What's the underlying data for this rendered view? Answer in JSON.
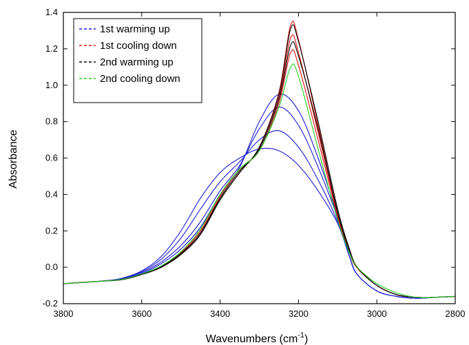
{
  "chart_data": {
    "type": "line",
    "title": "",
    "xlabel": "Wavenumbers (cm",
    "xlabel_superscript": "-1",
    "xlabel_suffix": ")",
    "ylabel": "Absorbance",
    "xlim": [
      3800,
      2800
    ],
    "ylim": [
      -0.2,
      1.4
    ],
    "x_reversed": true,
    "x_ticks": [
      3800,
      3600,
      3400,
      3200,
      3000,
      2800
    ],
    "x_tick_labels": [
      "3800",
      "3600",
      "3400",
      "3200",
      "3000",
      "2800"
    ],
    "y_ticks": [
      -0.2,
      0.0,
      0.2,
      0.4,
      0.6,
      0.8,
      1.0,
      1.2,
      1.4
    ],
    "y_tick_labels": [
      "-0.2",
      "0.0",
      "0.2",
      "0.4",
      "0.6",
      "0.8",
      "1.0",
      "1.2",
      "1.4"
    ],
    "grid": false,
    "legend_position": "top-left",
    "series": [
      {
        "name": "1st warming up",
        "color": "#1a1ad6",
        "spectra": [
          {
            "x": [
              3800,
              3700,
              3650,
              3600,
              3550,
              3500,
              3450,
              3400,
              3350,
              3300,
              3250,
              3200,
              3150,
              3100,
              3070,
              3050,
              3000,
              2950,
              2900,
              2850,
              2800
            ],
            "y": [
              -0.09,
              -0.075,
              -0.06,
              -0.02,
              0.06,
              0.2,
              0.38,
              0.52,
              0.6,
              0.65,
              0.64,
              0.56,
              0.42,
              0.24,
              0.06,
              -0.04,
              -0.13,
              -0.16,
              -0.17,
              -0.165,
              -0.16
            ]
          },
          {
            "x": [
              3800,
              3700,
              3650,
              3600,
              3550,
              3500,
              3450,
              3400,
              3350,
              3300,
              3250,
              3200,
              3150,
              3100,
              3070,
              3050,
              3000,
              2950,
              2900,
              2850,
              2800
            ],
            "y": [
              -0.09,
              -0.075,
              -0.062,
              -0.025,
              0.045,
              0.16,
              0.32,
              0.47,
              0.58,
              0.7,
              0.75,
              0.66,
              0.48,
              0.25,
              0.06,
              -0.04,
              -0.13,
              -0.16,
              -0.17,
              -0.165,
              -0.16
            ]
          },
          {
            "x": [
              3800,
              3700,
              3650,
              3600,
              3550,
              3500,
              3450,
              3400,
              3350,
              3300,
              3250,
              3200,
              3150,
              3100,
              3070,
              3050,
              3000,
              2950,
              2900,
              2850,
              2800
            ],
            "y": [
              -0.09,
              -0.075,
              -0.064,
              -0.03,
              0.03,
              0.12,
              0.25,
              0.42,
              0.56,
              0.76,
              0.88,
              0.78,
              0.55,
              0.27,
              0.06,
              -0.04,
              -0.13,
              -0.16,
              -0.17,
              -0.165,
              -0.16
            ]
          },
          {
            "x": [
              3800,
              3700,
              3650,
              3600,
              3550,
              3500,
              3450,
              3400,
              3350,
              3300,
              3250,
              3200,
              3150,
              3100,
              3070,
              3050,
              3000,
              2950,
              2900,
              2850,
              2800
            ],
            "y": [
              -0.09,
              -0.076,
              -0.066,
              -0.035,
              0.02,
              0.1,
              0.22,
              0.4,
              0.55,
              0.8,
              0.95,
              0.86,
              0.6,
              0.28,
              0.06,
              -0.04,
              -0.13,
              -0.16,
              -0.17,
              -0.165,
              -0.16
            ]
          }
        ]
      },
      {
        "name": "1st cooling down",
        "color": "#e01010",
        "spectra": [
          {
            "x": [
              3800,
              3700,
              3650,
              3600,
              3550,
              3500,
              3450,
              3400,
              3350,
              3300,
              3250,
              3220,
              3200,
              3150,
              3100,
              3070,
              3050,
              3000,
              2950,
              2900,
              2850,
              2800
            ],
            "y": [
              -0.09,
              -0.076,
              -0.068,
              -0.04,
              0.0,
              0.07,
              0.18,
              0.37,
              0.52,
              0.66,
              0.96,
              1.33,
              1.25,
              0.78,
              0.3,
              0.1,
              0.0,
              -0.1,
              -0.15,
              -0.165,
              -0.165,
              -0.16
            ]
          },
          {
            "x": [
              3800,
              3700,
              3650,
              3600,
              3550,
              3500,
              3450,
              3400,
              3350,
              3300,
              3250,
              3220,
              3200,
              3150,
              3100,
              3070,
              3050,
              3000,
              2950,
              2900,
              2850,
              2800
            ],
            "y": [
              -0.09,
              -0.076,
              -0.067,
              -0.039,
              0.003,
              0.075,
              0.19,
              0.38,
              0.53,
              0.65,
              0.93,
              1.26,
              1.18,
              0.74,
              0.29,
              0.09,
              0.0,
              -0.1,
              -0.15,
              -0.165,
              -0.165,
              -0.16
            ]
          },
          {
            "x": [
              3800,
              3700,
              3650,
              3600,
              3550,
              3500,
              3450,
              3400,
              3350,
              3300,
              3250,
              3220,
              3200,
              3150,
              3100,
              3070,
              3050,
              3000,
              2950,
              2900,
              2850,
              2800
            ],
            "y": [
              -0.09,
              -0.076,
              -0.066,
              -0.038,
              0.006,
              0.08,
              0.2,
              0.39,
              0.54,
              0.64,
              0.9,
              1.18,
              1.11,
              0.7,
              0.28,
              0.08,
              -0.005,
              -0.1,
              -0.15,
              -0.165,
              -0.165,
              -0.16
            ]
          }
        ]
      },
      {
        "name": "2nd warming up",
        "color": "#000000",
        "spectra": [
          {
            "x": [
              3800,
              3700,
              3650,
              3600,
              3550,
              3500,
              3450,
              3400,
              3350,
              3300,
              3250,
              3220,
              3200,
              3150,
              3100,
              3070,
              3050,
              3000,
              2950,
              2900,
              2850,
              2800
            ],
            "y": [
              -0.09,
              -0.076,
              -0.068,
              -0.04,
              0.0,
              0.07,
              0.18,
              0.37,
              0.52,
              0.66,
              0.95,
              1.31,
              1.24,
              0.8,
              0.32,
              0.1,
              0.0,
              -0.1,
              -0.15,
              -0.165,
              -0.165,
              -0.16
            ]
          },
          {
            "x": [
              3800,
              3700,
              3650,
              3600,
              3550,
              3500,
              3450,
              3400,
              3350,
              3300,
              3250,
              3220,
              3200,
              3150,
              3100,
              3070,
              3050,
              3000,
              2950,
              2900,
              2850,
              2800
            ],
            "y": [
              -0.09,
              -0.076,
              -0.067,
              -0.039,
              0.004,
              0.076,
              0.19,
              0.38,
              0.53,
              0.65,
              0.92,
              1.22,
              1.16,
              0.76,
              0.3,
              0.09,
              0.0,
              -0.1,
              -0.15,
              -0.165,
              -0.165,
              -0.16
            ]
          }
        ]
      },
      {
        "name": "2nd cooling down",
        "color": "#22cc22",
        "spectra": [
          {
            "x": [
              3800,
              3700,
              3650,
              3600,
              3550,
              3500,
              3450,
              3400,
              3350,
              3300,
              3250,
              3220,
              3200,
              3150,
              3100,
              3070,
              3050,
              3000,
              2950,
              2900,
              2850,
              2800
            ],
            "y": [
              -0.09,
              -0.076,
              -0.066,
              -0.037,
              0.008,
              0.085,
              0.21,
              0.4,
              0.54,
              0.64,
              0.88,
              1.1,
              1.05,
              0.65,
              0.26,
              0.08,
              0.0,
              -0.09,
              -0.14,
              -0.165,
              -0.165,
              -0.16
            ]
          }
        ]
      }
    ]
  }
}
